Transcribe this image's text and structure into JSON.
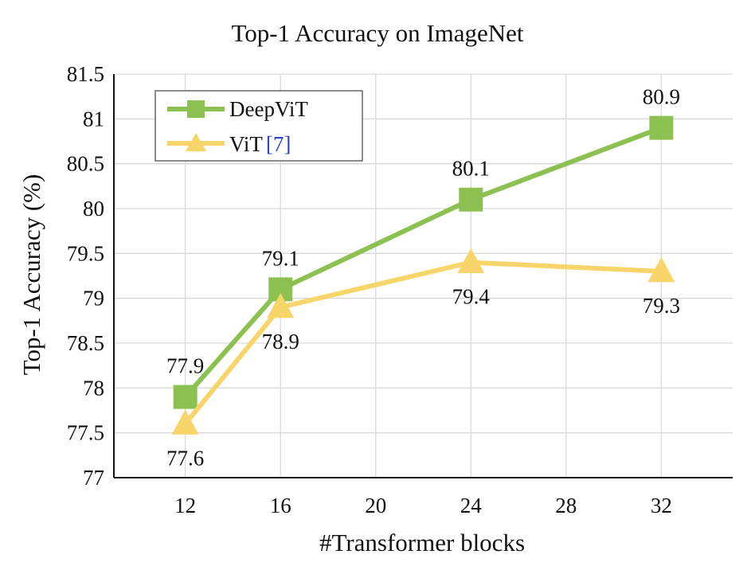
{
  "chart_data": {
    "type": "line",
    "title": "Top-1 Accuracy on ImageNet",
    "xlabel": "#Transformer blocks",
    "ylabel": "Top-1 Accuracy (%)",
    "x_ticks": [
      "12",
      "16",
      "20",
      "24",
      "28",
      "32"
    ],
    "x_tick_values": [
      12,
      16,
      20,
      24,
      28,
      32
    ],
    "xlim": [
      9,
      35
    ],
    "y_ticks": [
      "77",
      "77.5",
      "78",
      "78.5",
      "79",
      "79.5",
      "80",
      "80.5",
      "81",
      "81.5"
    ],
    "y_tick_values": [
      77,
      77.5,
      78,
      78.5,
      79,
      79.5,
      80,
      80.5,
      81,
      81.5
    ],
    "ylim": [
      77,
      81.5
    ],
    "grid": true,
    "legend_position": "top-left",
    "series": [
      {
        "name": "DeepViT",
        "marker": "square",
        "color": "#8cc152",
        "x": [
          12,
          16,
          24,
          32
        ],
        "y": [
          77.9,
          79.1,
          80.1,
          80.9
        ],
        "labels": [
          "77.9",
          "79.1",
          "80.1",
          "80.9"
        ],
        "label_position": "above"
      },
      {
        "name": "ViT",
        "name_ref": "[7]",
        "marker": "triangle",
        "color": "#f8d56b",
        "x": [
          12,
          16,
          24,
          32
        ],
        "y": [
          77.6,
          78.9,
          79.4,
          79.3
        ],
        "labels": [
          "77.6",
          "78.9",
          "79.4",
          "79.3"
        ],
        "label_position": "below"
      }
    ]
  }
}
